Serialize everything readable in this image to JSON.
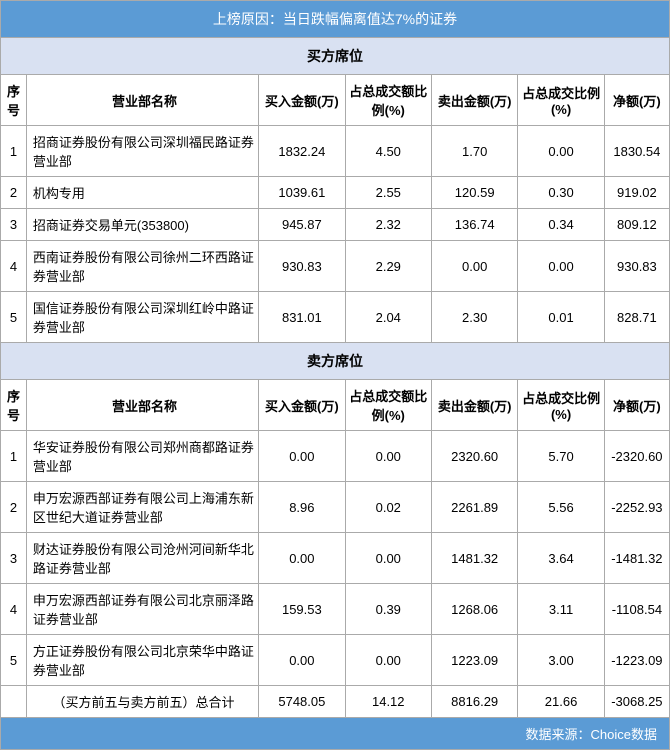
{
  "title": "上榜原因：当日跌幅偏离值达7%的证券",
  "buyer_section_title": "买方席位",
  "seller_section_title": "卖方席位",
  "columns": {
    "seq": "序号",
    "dept": "营业部名称",
    "buy_amt": "买入金额(万)",
    "buy_pct": "占总成交额比例(%)",
    "sell_amt": "卖出金额(万)",
    "sell_pct": "占总成交比例(%)",
    "net": "净额(万)"
  },
  "buyers": [
    {
      "n": "1",
      "dept": "招商证券股份有限公司深圳福民路证券营业部",
      "buy_amt": "1832.24",
      "buy_pct": "4.50",
      "sell_amt": "1.70",
      "sell_pct": "0.00",
      "net": "1830.54"
    },
    {
      "n": "2",
      "dept": "机构专用",
      "buy_amt": "1039.61",
      "buy_pct": "2.55",
      "sell_amt": "120.59",
      "sell_pct": "0.30",
      "net": "919.02"
    },
    {
      "n": "3",
      "dept": "招商证券交易单元(353800)",
      "buy_amt": "945.87",
      "buy_pct": "2.32",
      "sell_amt": "136.74",
      "sell_pct": "0.34",
      "net": "809.12"
    },
    {
      "n": "4",
      "dept": "西南证券股份有限公司徐州二环西路证券营业部",
      "buy_amt": "930.83",
      "buy_pct": "2.29",
      "sell_amt": "0.00",
      "sell_pct": "0.00",
      "net": "930.83"
    },
    {
      "n": "5",
      "dept": "国信证券股份有限公司深圳红岭中路证券营业部",
      "buy_amt": "831.01",
      "buy_pct": "2.04",
      "sell_amt": "2.30",
      "sell_pct": "0.01",
      "net": "828.71"
    }
  ],
  "sellers": [
    {
      "n": "1",
      "dept": "华安证券股份有限公司郑州商都路证券营业部",
      "buy_amt": "0.00",
      "buy_pct": "0.00",
      "sell_amt": "2320.60",
      "sell_pct": "5.70",
      "net": "-2320.60"
    },
    {
      "n": "2",
      "dept": "申万宏源西部证券有限公司上海浦东新区世纪大道证券营业部",
      "buy_amt": "8.96",
      "buy_pct": "0.02",
      "sell_amt": "2261.89",
      "sell_pct": "5.56",
      "net": "-2252.93"
    },
    {
      "n": "3",
      "dept": "财达证券股份有限公司沧州河间新华北路证券营业部",
      "buy_amt": "0.00",
      "buy_pct": "0.00",
      "sell_amt": "1481.32",
      "sell_pct": "3.64",
      "net": "-1481.32"
    },
    {
      "n": "4",
      "dept": "申万宏源西部证券有限公司北京丽泽路证券营业部",
      "buy_amt": "159.53",
      "buy_pct": "0.39",
      "sell_amt": "1268.06",
      "sell_pct": "3.11",
      "net": "-1108.54"
    },
    {
      "n": "5",
      "dept": "方正证券股份有限公司北京荣华中路证券营业部",
      "buy_amt": "0.00",
      "buy_pct": "0.00",
      "sell_amt": "1223.09",
      "sell_pct": "3.00",
      "net": "-1223.09"
    }
  ],
  "totals": {
    "label": "（买方前五与卖方前五）总合计",
    "buy_amt": "5748.05",
    "buy_pct": "14.12",
    "sell_amt": "8816.29",
    "sell_pct": "21.66",
    "net": "-3068.25"
  },
  "footer": "数据来源：Choice数据",
  "colors": {
    "header_bg": "#5b9bd5",
    "section_bg": "#d9e1f2",
    "border": "#aaaaaa"
  }
}
